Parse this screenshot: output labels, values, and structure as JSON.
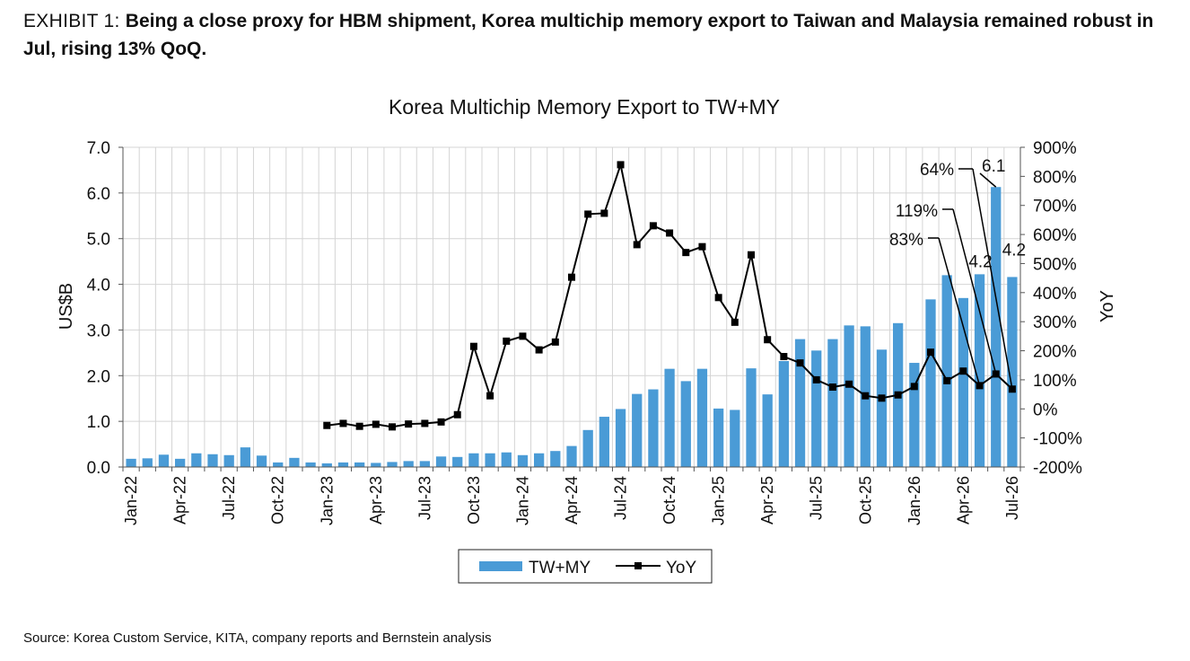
{
  "exhibit": {
    "label": "EXHIBIT 1: ",
    "title": "Being a close proxy for HBM shipment, Korea multichip memory export to Taiwan and Malaysia remained robust in Jul, rising 13% QoQ."
  },
  "source": "Source: Korea Custom Service, KITA, company reports and Bernstein analysis",
  "colors": {
    "bar": "#4a9bd6",
    "line": "#000000",
    "grid": "#d4d4d4"
  },
  "chart_data": {
    "type": "bar",
    "title": "Korea Multichip Memory Export to TW+MY",
    "ylabel": "US$B",
    "y2label": "YoY",
    "ylim": [
      0,
      7
    ],
    "y2lim": [
      -200,
      900
    ],
    "yticks": [
      "0.0",
      "1.0",
      "2.0",
      "3.0",
      "4.0",
      "5.0",
      "6.0",
      "7.0"
    ],
    "y2ticks": [
      "-200%",
      "-100%",
      "0%",
      "100%",
      "200%",
      "300%",
      "400%",
      "500%",
      "600%",
      "700%",
      "800%",
      "900%"
    ],
    "grid": true,
    "legend_position": "bottom",
    "categories": [
      "Jan-22",
      "Feb-22",
      "Mar-22",
      "Apr-22",
      "May-22",
      "Jun-22",
      "Jul-22",
      "Aug-22",
      "Sep-22",
      "Oct-22",
      "Nov-22",
      "Dec-22",
      "Jan-23",
      "Feb-23",
      "Mar-23",
      "Apr-23",
      "May-23",
      "Jun-23",
      "Jul-23",
      "Aug-23",
      "Sep-23",
      "Oct-23",
      "Nov-23",
      "Dec-23",
      "Jan-24",
      "Feb-24",
      "Mar-24",
      "Apr-24",
      "May-24",
      "Jun-24",
      "Jul-24",
      "Aug-24",
      "Sep-24",
      "Oct-24",
      "Nov-24",
      "Dec-24",
      "Jan-25",
      "Feb-25",
      "Mar-25",
      "Apr-25",
      "May-25",
      "Jun-25",
      "Jul-25",
      "Aug-25",
      "Sep-25",
      "Oct-25",
      "Nov-25",
      "Dec-25",
      "Jan-26",
      "Feb-26",
      "Mar-26",
      "Apr-26",
      "May-26",
      "Jun-26",
      "Jul-26"
    ],
    "x_tick_labels": [
      "Jan-22",
      "Apr-22",
      "Jul-22",
      "Oct-22",
      "Jan-23",
      "Apr-23",
      "Jul-23",
      "Oct-23",
      "Jan-24",
      "Apr-24",
      "Jul-24",
      "Oct-24",
      "Jan-25",
      "Apr-25",
      "Jul-25",
      "Oct-25",
      "Jan-26",
      "Apr-26",
      "Jul-26"
    ],
    "series": [
      {
        "name": "TW+MY",
        "type": "bar",
        "axis": "left",
        "values": [
          0.18,
          0.19,
          0.27,
          0.18,
          0.3,
          0.28,
          0.26,
          0.43,
          0.25,
          0.1,
          0.2,
          0.1,
          0.08,
          0.1,
          0.1,
          0.09,
          0.11,
          0.13,
          0.13,
          0.23,
          0.22,
          0.3,
          0.3,
          0.32,
          0.26,
          0.3,
          0.35,
          0.46,
          0.81,
          1.1,
          1.27,
          1.6,
          1.7,
          2.15,
          1.88,
          2.15,
          1.28,
          1.25,
          2.16,
          1.59,
          2.32,
          2.8,
          2.55,
          2.8,
          3.1,
          3.08,
          2.57,
          3.15,
          2.28,
          3.67,
          4.2,
          3.7,
          4.22,
          6.13,
          4.16
        ]
      },
      {
        "name": "YoY",
        "type": "line",
        "axis": "right",
        "values": [
          null,
          null,
          null,
          null,
          null,
          null,
          null,
          null,
          null,
          null,
          null,
          null,
          -57,
          -50,
          -60,
          -53,
          -62,
          -52,
          -50,
          -45,
          -20,
          215,
          45,
          233,
          250,
          203,
          230,
          453,
          670,
          673,
          840,
          565,
          630,
          605,
          538,
          558,
          383,
          298,
          530,
          238,
          180,
          158,
          100,
          75,
          85,
          45,
          37,
          48,
          77,
          195,
          97,
          130,
          80,
          120,
          68
        ]
      }
    ],
    "annotations": [
      "64%",
      "6.1",
      "119%",
      "4.2",
      "83%",
      "4.2"
    ]
  }
}
